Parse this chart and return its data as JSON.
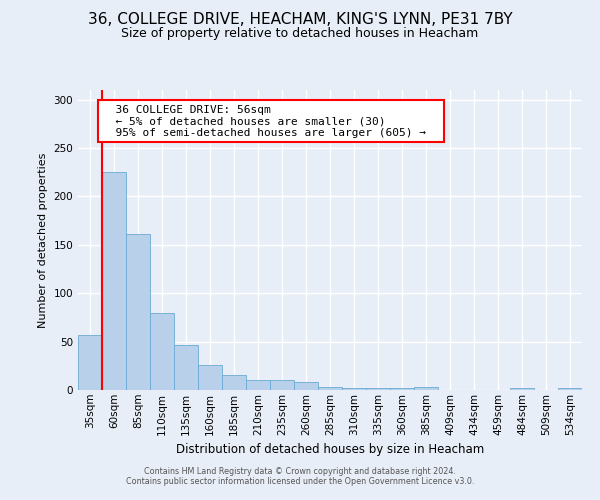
{
  "title_line1": "36, COLLEGE DRIVE, HEACHAM, KING'S LYNN, PE31 7BY",
  "title_line2": "Size of property relative to detached houses in Heacham",
  "xlabel": "Distribution of detached houses by size in Heacham",
  "ylabel": "Number of detached properties",
  "annotation_line1": "36 COLLEGE DRIVE: 56sqm",
  "annotation_line2": "← 5% of detached houses are smaller (30)",
  "annotation_line3": "95% of semi-detached houses are larger (605) →",
  "footer_line1": "Contains HM Land Registry data © Crown copyright and database right 2024.",
  "footer_line2": "Contains public sector information licensed under the Open Government Licence v3.0.",
  "bar_categories": [
    "35sqm",
    "60sqm",
    "85sqm",
    "110sqm",
    "135sqm",
    "160sqm",
    "185sqm",
    "210sqm",
    "235sqm",
    "260sqm",
    "285sqm",
    "310sqm",
    "335sqm",
    "360sqm",
    "385sqm",
    "409sqm",
    "434sqm",
    "459sqm",
    "484sqm",
    "509sqm",
    "534sqm"
  ],
  "bar_values": [
    57,
    225,
    161,
    80,
    47,
    26,
    16,
    10,
    10,
    8,
    3,
    2,
    2,
    2,
    3,
    0,
    0,
    0,
    2,
    0,
    2
  ],
  "bar_color": "#b8d0ea",
  "bar_edge_color": "#6aaad4",
  "marker_color": "red",
  "ylim": [
    0,
    310
  ],
  "yticks": [
    0,
    50,
    100,
    150,
    200,
    250,
    300
  ],
  "background_color": "#e8eef8",
  "grid_color": "white",
  "title1_fontsize": 11,
  "title2_fontsize": 9,
  "ylabel_fontsize": 8,
  "xlabel_fontsize": 8.5,
  "tick_fontsize": 7.5,
  "footer_fontsize": 5.8
}
